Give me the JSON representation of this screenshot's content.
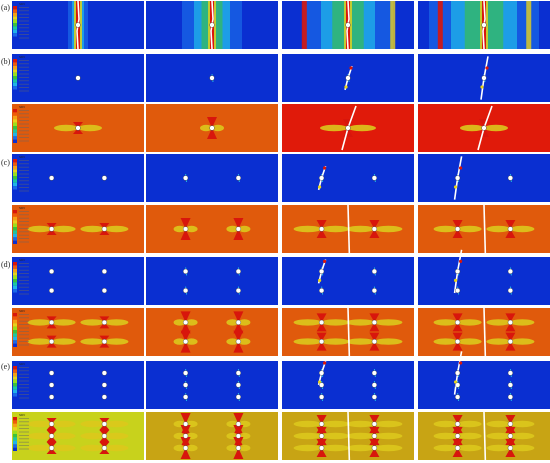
{
  "figure": {
    "row_labels": [
      "(a)",
      "(b)",
      "(c)",
      "(d)",
      "(e)"
    ],
    "legend_tags": [
      "SDV",
      "SDV",
      "SDV",
      "SDV",
      "SDV",
      "SDV",
      "SDV",
      "SDV",
      "SDV"
    ],
    "palette": {
      "blue_bg": "#0a2fd1",
      "orange_bg": "#e05a0c",
      "red_bg": "#e01a0a",
      "yellow_bg": "#c8d21c",
      "mustard_bg": "#c8a414",
      "red_zone": "#d8160c",
      "yellow_zone": "#dcc81c",
      "green_zone": "#3cc23c",
      "cyan_zone": "#20b4e8",
      "crack": "#ffffff"
    },
    "panels": [
      {
        "row": 0,
        "col": 0,
        "bg": "blue_bg",
        "holes": [
          [
            0.5,
            0.5
          ]
        ],
        "stage": 1,
        "kind": "a"
      },
      {
        "row": 0,
        "col": 1,
        "bg": "blue_bg",
        "holes": [
          [
            0.5,
            0.5
          ]
        ],
        "stage": 2,
        "kind": "a"
      },
      {
        "row": 0,
        "col": 2,
        "bg": "blue_bg",
        "holes": [
          [
            0.5,
            0.5
          ]
        ],
        "stage": 3,
        "kind": "a"
      },
      {
        "row": 0,
        "col": 3,
        "bg": "blue_bg",
        "holes": [
          [
            0.5,
            0.5
          ]
        ],
        "stage": 4,
        "kind": "a"
      },
      {
        "row": 1,
        "col": 0,
        "bg": "blue_bg",
        "holes": [
          [
            0.5,
            0.5
          ]
        ],
        "stage": 1,
        "kind": "damage"
      },
      {
        "row": 1,
        "col": 1,
        "bg": "blue_bg",
        "holes": [
          [
            0.5,
            0.5
          ]
        ],
        "stage": 2,
        "kind": "damage"
      },
      {
        "row": 1,
        "col": 2,
        "bg": "blue_bg",
        "holes": [
          [
            0.5,
            0.5
          ]
        ],
        "stage": 3,
        "kind": "damage"
      },
      {
        "row": 1,
        "col": 3,
        "bg": "blue_bg",
        "holes": [
          [
            0.5,
            0.5
          ]
        ],
        "stage": 4,
        "kind": "damage"
      },
      {
        "row": 2,
        "col": 0,
        "bg": "orange_bg",
        "holes": [
          [
            0.5,
            0.5
          ]
        ],
        "stage": 1,
        "kind": "stress"
      },
      {
        "row": 2,
        "col": 1,
        "bg": "orange_bg",
        "holes": [
          [
            0.5,
            0.5
          ]
        ],
        "stage": 2,
        "kind": "stress"
      },
      {
        "row": 2,
        "col": 2,
        "bg": "red_bg",
        "holes": [
          [
            0.5,
            0.5
          ]
        ],
        "stage": 3,
        "kind": "stress"
      },
      {
        "row": 2,
        "col": 3,
        "bg": "red_bg",
        "holes": [
          [
            0.5,
            0.5
          ]
        ],
        "stage": 4,
        "kind": "stress"
      },
      {
        "row": 3,
        "col": 0,
        "bg": "blue_bg",
        "holes": [
          [
            0.3,
            0.5
          ],
          [
            0.7,
            0.5
          ]
        ],
        "stage": 1,
        "kind": "damage"
      },
      {
        "row": 3,
        "col": 1,
        "bg": "blue_bg",
        "holes": [
          [
            0.3,
            0.5
          ],
          [
            0.7,
            0.5
          ]
        ],
        "stage": 2,
        "kind": "damage"
      },
      {
        "row": 3,
        "col": 2,
        "bg": "blue_bg",
        "holes": [
          [
            0.3,
            0.5
          ],
          [
            0.7,
            0.5
          ]
        ],
        "stage": 3,
        "kind": "damage"
      },
      {
        "row": 3,
        "col": 3,
        "bg": "blue_bg",
        "holes": [
          [
            0.3,
            0.5
          ],
          [
            0.7,
            0.5
          ]
        ],
        "stage": 4,
        "kind": "damage"
      },
      {
        "row": 4,
        "col": 0,
        "bg": "orange_bg",
        "holes": [
          [
            0.3,
            0.5
          ],
          [
            0.7,
            0.5
          ]
        ],
        "stage": 1,
        "kind": "stress"
      },
      {
        "row": 4,
        "col": 1,
        "bg": "orange_bg",
        "holes": [
          [
            0.3,
            0.5
          ],
          [
            0.7,
            0.5
          ]
        ],
        "stage": 2,
        "kind": "stress"
      },
      {
        "row": 4,
        "col": 2,
        "bg": "orange_bg",
        "holes": [
          [
            0.3,
            0.5
          ],
          [
            0.7,
            0.5
          ]
        ],
        "stage": 3,
        "kind": "stress"
      },
      {
        "row": 4,
        "col": 3,
        "bg": "orange_bg",
        "holes": [
          [
            0.3,
            0.5
          ],
          [
            0.7,
            0.5
          ]
        ],
        "stage": 4,
        "kind": "stress"
      },
      {
        "row": 5,
        "col": 0,
        "bg": "blue_bg",
        "holes": [
          [
            0.3,
            0.3
          ],
          [
            0.7,
            0.3
          ],
          [
            0.3,
            0.7
          ],
          [
            0.7,
            0.7
          ]
        ],
        "stage": 1,
        "kind": "damage"
      },
      {
        "row": 5,
        "col": 1,
        "bg": "blue_bg",
        "holes": [
          [
            0.3,
            0.3
          ],
          [
            0.7,
            0.3
          ],
          [
            0.3,
            0.7
          ],
          [
            0.7,
            0.7
          ]
        ],
        "stage": 2,
        "kind": "damage"
      },
      {
        "row": 5,
        "col": 2,
        "bg": "blue_bg",
        "holes": [
          [
            0.3,
            0.3
          ],
          [
            0.7,
            0.3
          ],
          [
            0.3,
            0.7
          ],
          [
            0.7,
            0.7
          ]
        ],
        "stage": 3,
        "kind": "damage"
      },
      {
        "row": 5,
        "col": 3,
        "bg": "blue_bg",
        "holes": [
          [
            0.3,
            0.3
          ],
          [
            0.7,
            0.3
          ],
          [
            0.3,
            0.7
          ],
          [
            0.7,
            0.7
          ]
        ],
        "stage": 4,
        "kind": "damage"
      },
      {
        "row": 6,
        "col": 0,
        "bg": "orange_bg",
        "holes": [
          [
            0.3,
            0.3
          ],
          [
            0.7,
            0.3
          ],
          [
            0.3,
            0.7
          ],
          [
            0.7,
            0.7
          ]
        ],
        "stage": 1,
        "kind": "stress"
      },
      {
        "row": 6,
        "col": 1,
        "bg": "orange_bg",
        "holes": [
          [
            0.3,
            0.3
          ],
          [
            0.7,
            0.3
          ],
          [
            0.3,
            0.7
          ],
          [
            0.7,
            0.7
          ]
        ],
        "stage": 2,
        "kind": "stress"
      },
      {
        "row": 6,
        "col": 2,
        "bg": "orange_bg",
        "holes": [
          [
            0.3,
            0.3
          ],
          [
            0.7,
            0.3
          ],
          [
            0.3,
            0.7
          ],
          [
            0.7,
            0.7
          ]
        ],
        "stage": 3,
        "kind": "stress"
      },
      {
        "row": 6,
        "col": 3,
        "bg": "orange_bg",
        "holes": [
          [
            0.3,
            0.3
          ],
          [
            0.7,
            0.3
          ],
          [
            0.3,
            0.7
          ],
          [
            0.7,
            0.7
          ]
        ],
        "stage": 4,
        "kind": "stress"
      },
      {
        "row": 7,
        "col": 0,
        "bg": "blue_bg",
        "holes": [
          [
            0.3,
            0.25
          ],
          [
            0.7,
            0.25
          ],
          [
            0.3,
            0.5
          ],
          [
            0.7,
            0.5
          ],
          [
            0.3,
            0.75
          ],
          [
            0.7,
            0.75
          ]
        ],
        "stage": 1,
        "kind": "damage"
      },
      {
        "row": 7,
        "col": 1,
        "bg": "blue_bg",
        "holes": [
          [
            0.3,
            0.25
          ],
          [
            0.7,
            0.25
          ],
          [
            0.3,
            0.5
          ],
          [
            0.7,
            0.5
          ],
          [
            0.3,
            0.75
          ],
          [
            0.7,
            0.75
          ]
        ],
        "stage": 2,
        "kind": "damage"
      },
      {
        "row": 7,
        "col": 2,
        "bg": "blue_bg",
        "holes": [
          [
            0.3,
            0.25
          ],
          [
            0.7,
            0.25
          ],
          [
            0.3,
            0.5
          ],
          [
            0.7,
            0.5
          ],
          [
            0.3,
            0.75
          ],
          [
            0.7,
            0.75
          ]
        ],
        "stage": 3,
        "kind": "damage"
      },
      {
        "row": 7,
        "col": 3,
        "bg": "blue_bg",
        "holes": [
          [
            0.3,
            0.25
          ],
          [
            0.7,
            0.25
          ],
          [
            0.3,
            0.5
          ],
          [
            0.7,
            0.5
          ],
          [
            0.3,
            0.75
          ],
          [
            0.7,
            0.75
          ]
        ],
        "stage": 4,
        "kind": "damage"
      },
      {
        "row": 8,
        "col": 0,
        "bg": "yellow_bg",
        "holes": [
          [
            0.3,
            0.25
          ],
          [
            0.7,
            0.25
          ],
          [
            0.3,
            0.5
          ],
          [
            0.7,
            0.5
          ],
          [
            0.3,
            0.75
          ],
          [
            0.7,
            0.75
          ]
        ],
        "stage": 1,
        "kind": "stress"
      },
      {
        "row": 8,
        "col": 1,
        "bg": "mustard_bg",
        "holes": [
          [
            0.3,
            0.25
          ],
          [
            0.7,
            0.25
          ],
          [
            0.3,
            0.5
          ],
          [
            0.7,
            0.5
          ],
          [
            0.3,
            0.75
          ],
          [
            0.7,
            0.75
          ]
        ],
        "stage": 2,
        "kind": "stress"
      },
      {
        "row": 8,
        "col": 2,
        "bg": "mustard_bg",
        "holes": [
          [
            0.3,
            0.25
          ],
          [
            0.7,
            0.25
          ],
          [
            0.3,
            0.5
          ],
          [
            0.7,
            0.5
          ],
          [
            0.3,
            0.75
          ],
          [
            0.7,
            0.75
          ]
        ],
        "stage": 3,
        "kind": "stress"
      },
      {
        "row": 8,
        "col": 3,
        "bg": "mustard_bg",
        "holes": [
          [
            0.3,
            0.25
          ],
          [
            0.7,
            0.25
          ],
          [
            0.3,
            0.5
          ],
          [
            0.7,
            0.5
          ],
          [
            0.3,
            0.75
          ],
          [
            0.7,
            0.75
          ]
        ],
        "stage": 4,
        "kind": "stress"
      }
    ]
  }
}
